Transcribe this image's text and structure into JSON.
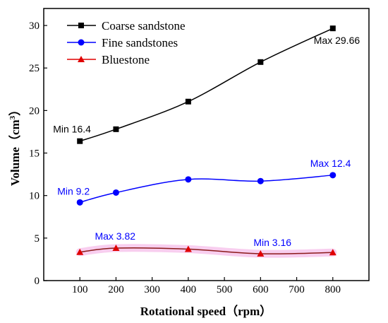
{
  "chart_data": {
    "type": "line",
    "xlabel": "Rotational speed（rpm）",
    "ylabel_main": "Volume（cm",
    "ylabel_sup": "3",
    "ylabel_close": "）",
    "xlim": [
      0,
      900
    ],
    "ylim": [
      0,
      32
    ],
    "xticks": [
      100,
      200,
      300,
      400,
      500,
      600,
      700,
      800
    ],
    "yticks": [
      0,
      5,
      10,
      15,
      20,
      25,
      30
    ],
    "legend_position": "top-left",
    "grid": false,
    "x": [
      100,
      200,
      400,
      600,
      800
    ],
    "series": [
      {
        "name": "Coarse sandstone",
        "marker": "square",
        "color": "#000000",
        "values": [
          16.4,
          17.8,
          21.05,
          25.7,
          29.66
        ]
      },
      {
        "name": "Fine sandstones",
        "marker": "circle",
        "color": "#0000ff",
        "values": [
          9.2,
          10.35,
          11.9,
          11.7,
          12.4
        ]
      },
      {
        "name": "Bluestone",
        "marker": "triangle",
        "color": "#e00000",
        "line_color": "#8b1a1a",
        "band_color": "#f7c6ec",
        "values": [
          3.35,
          3.82,
          3.7,
          3.16,
          3.3
        ]
      }
    ],
    "annotations": [
      {
        "text": "Min 16.4",
        "color": "#000000",
        "x": 100,
        "y": 16.4
      },
      {
        "text": "Max 29.66",
        "color": "#000000",
        "x": 800,
        "y": 29.66
      },
      {
        "text": "Min 9.2",
        "color": "#0000ff",
        "x": 100,
        "y": 9.2
      },
      {
        "text": "Max 12.4",
        "color": "#0000ff",
        "x": 800,
        "y": 12.4
      },
      {
        "text": "Max 3.82",
        "color": "#0000ff",
        "x": 200,
        "y": 3.82
      },
      {
        "text": "Min 3.16",
        "color": "#0000ff",
        "x": 600,
        "y": 3.16
      }
    ]
  }
}
